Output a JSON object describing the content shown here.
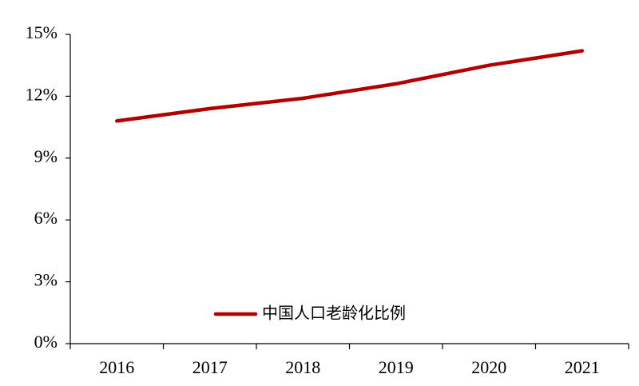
{
  "chart_data": {
    "type": "line",
    "categories": [
      "2016",
      "2017",
      "2018",
      "2019",
      "2020",
      "2021"
    ],
    "series": [
      {
        "name": "中国人口老龄化比例",
        "color": "#b00000",
        "values": [
          10.8,
          11.4,
          11.9,
          12.6,
          13.5,
          14.2
        ]
      }
    ],
    "ylim": [
      0,
      15
    ],
    "yticks": [
      {
        "value": 0,
        "label": "0%"
      },
      {
        "value": 3,
        "label": "3%"
      },
      {
        "value": 6,
        "label": "6%"
      },
      {
        "value": 9,
        "label": "9%"
      },
      {
        "value": 12,
        "label": "12%"
      },
      {
        "value": 15,
        "label": "15%"
      }
    ],
    "grid": false,
    "legend": "bottom"
  }
}
